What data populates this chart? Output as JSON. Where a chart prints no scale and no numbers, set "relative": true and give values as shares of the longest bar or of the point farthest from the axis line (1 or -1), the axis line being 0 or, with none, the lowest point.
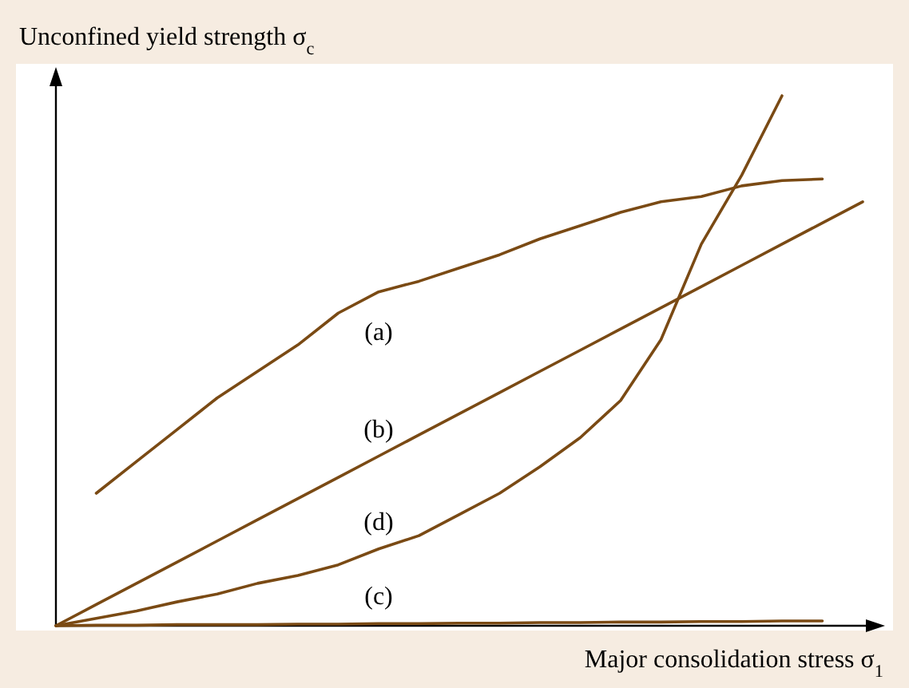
{
  "chart_data": {
    "type": "line",
    "relative": true,
    "ylabel": "Unconfined yield strength σ$_{c}$",
    "xlabel": "Major consolidation stress σ$_{1}$",
    "line_style": "solid",
    "categories": [
      null,
      null,
      null,
      null,
      null,
      null,
      null,
      null,
      null,
      null,
      null,
      null,
      null,
      null,
      null,
      null,
      null,
      null,
      null,
      null,
      null
    ],
    "series": [
      {
        "name": "(a)",
        "color": "#7a4a14",
        "values": [
          null,
          0.25,
          0.31,
          0.37,
          0.43,
          0.48,
          0.53,
          0.59,
          0.63,
          0.65,
          0.675,
          0.7,
          0.73,
          0.755,
          0.78,
          0.8,
          0.81,
          0.83,
          0.84,
          0.843,
          null
        ]
      },
      {
        "name": "(b)",
        "color": "#7a4a14",
        "values": [
          0,
          0.04,
          0.08,
          0.12,
          0.16,
          0.2,
          0.24,
          0.28,
          0.32,
          0.36,
          0.4,
          0.44,
          0.48,
          0.52,
          0.56,
          0.6,
          0.64,
          0.68,
          0.72,
          0.76,
          0.8
        ]
      },
      {
        "name": "(c)",
        "color": "#7a4a14",
        "values": [
          0,
          0.001,
          0.001,
          0.002,
          0.002,
          0.002,
          0.003,
          0.003,
          0.004,
          0.004,
          0.005,
          0.005,
          0.006,
          0.006,
          0.007,
          0.007,
          0.008,
          0.008,
          0.009,
          0.009,
          null
        ]
      },
      {
        "name": "(d)",
        "color": "#7a4a14",
        "values": [
          0,
          0.014,
          0.028,
          0.045,
          0.06,
          0.08,
          0.095,
          0.115,
          0.145,
          0.17,
          0.21,
          0.25,
          0.3,
          0.355,
          0.425,
          0.54,
          0.72,
          0.85,
          1,
          null,
          null
        ]
      }
    ]
  }
}
